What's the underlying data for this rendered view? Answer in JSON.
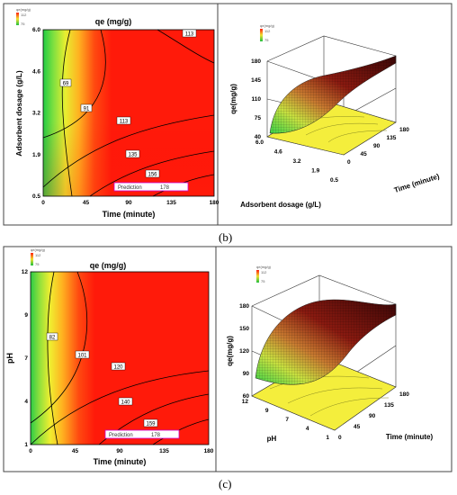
{
  "captions": {
    "b": "(b)",
    "c": "(c)"
  },
  "legend": {
    "max": "112",
    "min": "75",
    "header": "qe(mg/g)"
  },
  "legend_c": {
    "max": "112",
    "min": "75",
    "header": "qe(mg/g)"
  },
  "chart_data": [
    {
      "type": "heatmap",
      "title": "qe (mg/g)",
      "xlabel": "Time (minute)",
      "ylabel": "Adsorbent dosage (g/L)",
      "x_ticks": [
        "0",
        "45",
        "90",
        "135",
        "180"
      ],
      "y_ticks": [
        "0.5",
        "1.9",
        "3.2",
        "4.6",
        "6.0"
      ],
      "xlim": [
        0,
        180
      ],
      "ylim": [
        0.5,
        6.0
      ],
      "contour_labels": [
        "69",
        "91",
        "113",
        "113",
        "135",
        "156"
      ],
      "prediction": {
        "label": "Prediction",
        "value": "178",
        "x": 140,
        "y": 0.65
      }
    },
    {
      "type": "surface",
      "zlabel": "qe(mg/g)",
      "xlabel": "Time (minute)",
      "ylabel": "Adsorbent dosage (g/L)",
      "z_ticks": [
        "40",
        "75",
        "110",
        "145",
        "180"
      ],
      "x_ticks": [
        "0",
        "45",
        "90",
        "135",
        "180"
      ],
      "y_ticks": [
        "6.0",
        "4.6",
        "3.2",
        "1.9",
        "0.5"
      ]
    },
    {
      "type": "heatmap",
      "title": "qe (mg/g)",
      "xlabel": "Time (minute)",
      "ylabel": "pH",
      "x_ticks": [
        "0",
        "45",
        "90",
        "135",
        "180"
      ],
      "y_ticks": [
        "1",
        "4",
        "7",
        "9",
        "12"
      ],
      "xlim": [
        0,
        180
      ],
      "ylim": [
        1,
        12
      ],
      "contour_labels": [
        "82",
        "101",
        "120",
        "140",
        "159"
      ],
      "prediction": {
        "label": "Prediction",
        "value": "178",
        "x": 140,
        "y": 1.6
      }
    },
    {
      "type": "surface",
      "zlabel": "qe(mg/g)",
      "xlabel": "Time (minute)",
      "ylabel": "pH",
      "z_ticks": [
        "60",
        "90",
        "120",
        "150",
        "180"
      ],
      "x_ticks": [
        "0",
        "45",
        "90",
        "135",
        "180"
      ],
      "y_ticks": [
        "12",
        "9",
        "7",
        "4",
        "1"
      ]
    }
  ]
}
